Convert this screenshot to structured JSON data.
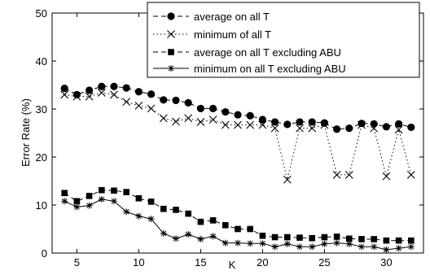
{
  "chart_data": {
    "type": "line",
    "xlabel": "K",
    "ylabel": "Error Rate (%)",
    "xlim": [
      3,
      33
    ],
    "ylim": [
      0,
      50
    ],
    "xticks": [
      5,
      10,
      15,
      20,
      25,
      30
    ],
    "yticks": [
      0,
      10,
      20,
      30,
      40,
      50
    ],
    "grid": false,
    "legend_position": "top-right",
    "x": [
      4,
      5,
      6,
      7,
      8,
      9,
      10,
      11,
      12,
      13,
      14,
      15,
      16,
      17,
      18,
      19,
      20,
      21,
      22,
      23,
      24,
      25,
      26,
      27,
      28,
      29,
      30,
      31,
      32
    ],
    "series": [
      {
        "name": "average on all T",
        "marker": "circle",
        "dash": "dashed",
        "values": [
          34.3,
          33.0,
          33.9,
          34.7,
          34.7,
          34.4,
          33.6,
          33.1,
          31.9,
          31.8,
          31.3,
          30.1,
          30.1,
          29.4,
          28.8,
          28.6,
          27.8,
          27.3,
          26.8,
          27.3,
          27.3,
          27.1,
          25.8,
          26.0,
          27.0,
          26.9,
          26.3,
          26.9,
          26.2
        ]
      },
      {
        "name": "minimum of all T",
        "marker": "x",
        "dash": "dotted",
        "values": [
          33.0,
          32.6,
          32.6,
          33.4,
          33.0,
          31.5,
          30.7,
          30.1,
          28.1,
          27.4,
          28.1,
          27.3,
          27.8,
          26.7,
          26.7,
          26.7,
          26.7,
          26.0,
          15.3,
          26.0,
          26.0,
          26.7,
          16.3,
          16.3,
          26.7,
          26.0,
          16.0,
          25.7,
          16.3
        ]
      },
      {
        "name": "average on all T excluding ABU",
        "marker": "square",
        "dash": "dashed",
        "values": [
          12.5,
          10.8,
          11.9,
          13.1,
          13.0,
          12.7,
          11.4,
          10.7,
          9.2,
          9.0,
          8.2,
          6.5,
          6.8,
          5.8,
          5.0,
          5.0,
          3.6,
          3.3,
          3.3,
          3.2,
          3.1,
          3.3,
          3.4,
          3.0,
          2.9,
          2.9,
          2.6,
          2.6,
          2.6
        ]
      },
      {
        "name": "minimum on all T excluding ABU",
        "marker": "star",
        "dash": "solid",
        "values": [
          10.8,
          9.6,
          9.9,
          11.2,
          10.8,
          8.6,
          7.7,
          7.1,
          4.1,
          3.0,
          3.9,
          2.9,
          3.5,
          2.1,
          2.1,
          2.0,
          2.0,
          1.3,
          1.9,
          1.3,
          1.3,
          1.9,
          2.1,
          1.9,
          1.3,
          1.3,
          0.7,
          1.0,
          1.3
        ]
      }
    ]
  }
}
